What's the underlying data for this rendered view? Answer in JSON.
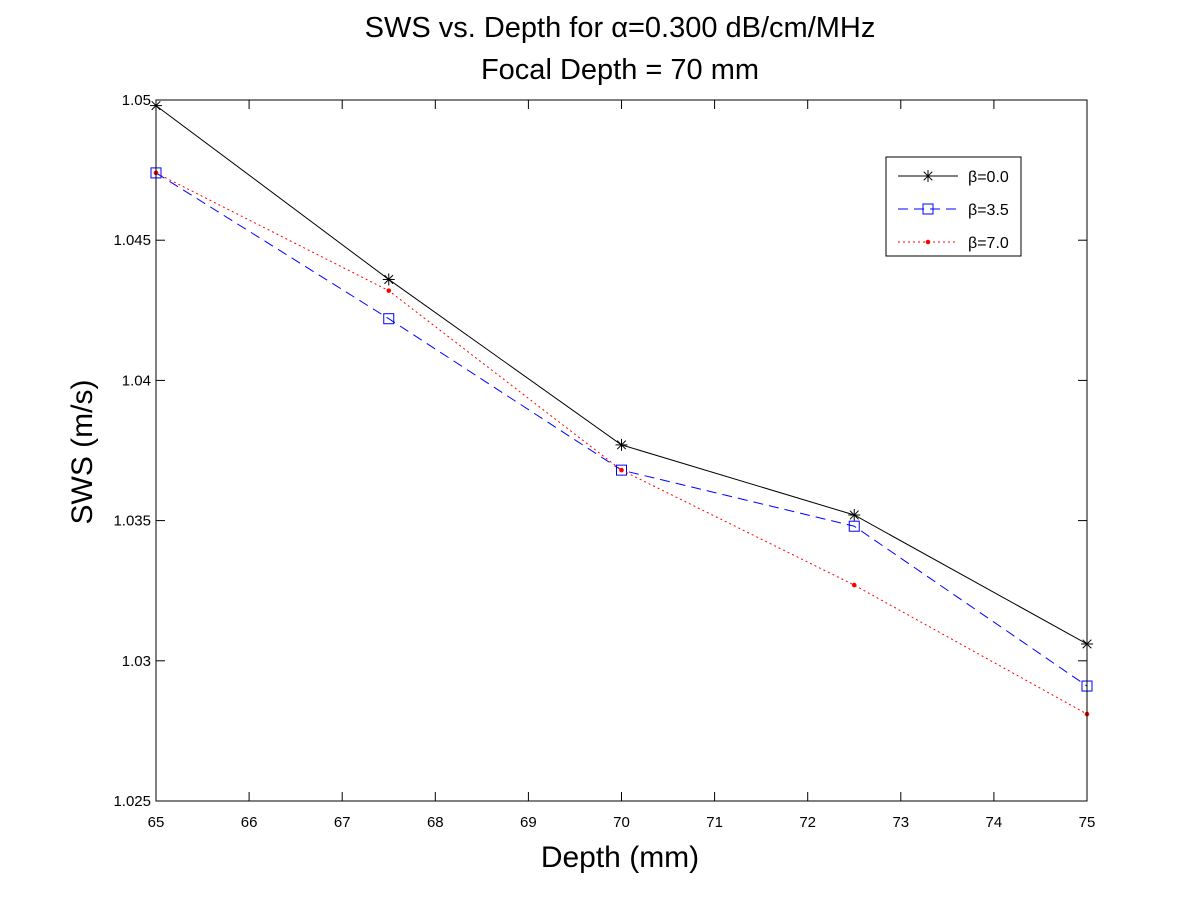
{
  "chart_data": {
    "type": "line",
    "title": "SWS vs. Depth for α=0.300 dB/cm/MHz",
    "subtitle": "Focal Depth = 70 mm",
    "xlabel": "Depth (mm)",
    "ylabel": "SWS (m/s)",
    "xlim": [
      65,
      75
    ],
    "ylim": [
      1.025,
      1.05
    ],
    "xticks": [
      "65",
      "66",
      "67",
      "68",
      "69",
      "70",
      "71",
      "72",
      "73",
      "74",
      "75"
    ],
    "yticks": [
      "1.025",
      "1.03",
      "1.035",
      "1.04",
      "1.045",
      "1.05"
    ],
    "grid": false,
    "legend_position": "top-right",
    "x": [
      65,
      67.5,
      70,
      72.5,
      75
    ],
    "series": [
      {
        "name": "β=0.0",
        "values": [
          1.0498,
          1.0436,
          1.0377,
          1.0352,
          1.0306
        ],
        "color": "#000000",
        "line_style": "solid",
        "marker": "asterisk"
      },
      {
        "name": "β=3.5",
        "values": [
          1.0474,
          1.0422,
          1.0368,
          1.0348,
          1.0291
        ],
        "color": "#0000ff",
        "line_style": "dashed",
        "marker": "square"
      },
      {
        "name": "β=7.0",
        "values": [
          1.0474,
          1.0432,
          1.0368,
          1.0327,
          1.0281
        ],
        "color": "#ff0000",
        "line_style": "dotted",
        "marker": "dot"
      }
    ]
  }
}
